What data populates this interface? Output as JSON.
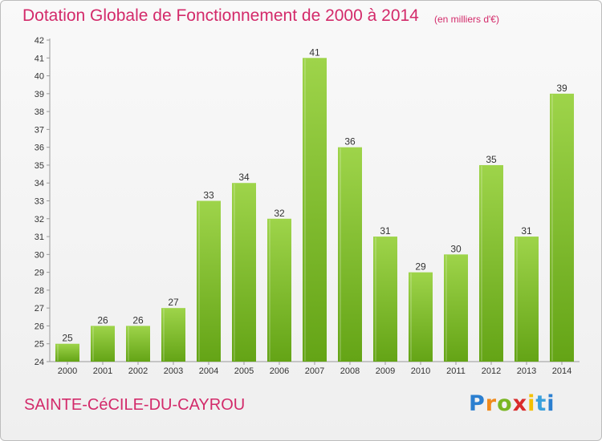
{
  "title": "Dotation Globale de Fonctionnement de 2000 à 2014",
  "subtitle": "(en milliers d'€)",
  "commune": "SAINTE-CéCILE-DU-CAYROU",
  "brand": {
    "name": "Proxiti",
    "colors": [
      "#2b7fd0",
      "#f08a1c",
      "#79b623",
      "#d92b2b",
      "#f3c000",
      "#3aa0dc"
    ]
  },
  "colors": {
    "bar_light": "#9ed44a",
    "bar_dark": "#64a416",
    "accent": "#d32a6a"
  },
  "chart_data": {
    "type": "bar",
    "categories": [
      "2000",
      "2001",
      "2002",
      "2003",
      "2004",
      "2005",
      "2006",
      "2007",
      "2008",
      "2009",
      "2010",
      "2011",
      "2012",
      "2013",
      "2014"
    ],
    "values": [
      25,
      26,
      26,
      27,
      33,
      34,
      32,
      41,
      36,
      31,
      29,
      30,
      35,
      31,
      39
    ],
    "title": "Dotation Globale de Fonctionnement de 2000 à 2014",
    "subtitle": "(en milliers d'€)",
    "xlabel": "",
    "ylabel": "",
    "ylim": [
      24,
      42
    ],
    "yticks": [
      24,
      25,
      26,
      27,
      28,
      29,
      30,
      31,
      32,
      33,
      34,
      35,
      36,
      37,
      38,
      39,
      40,
      41,
      42
    ],
    "grid": false,
    "legend": "none",
    "data_labels": true
  }
}
